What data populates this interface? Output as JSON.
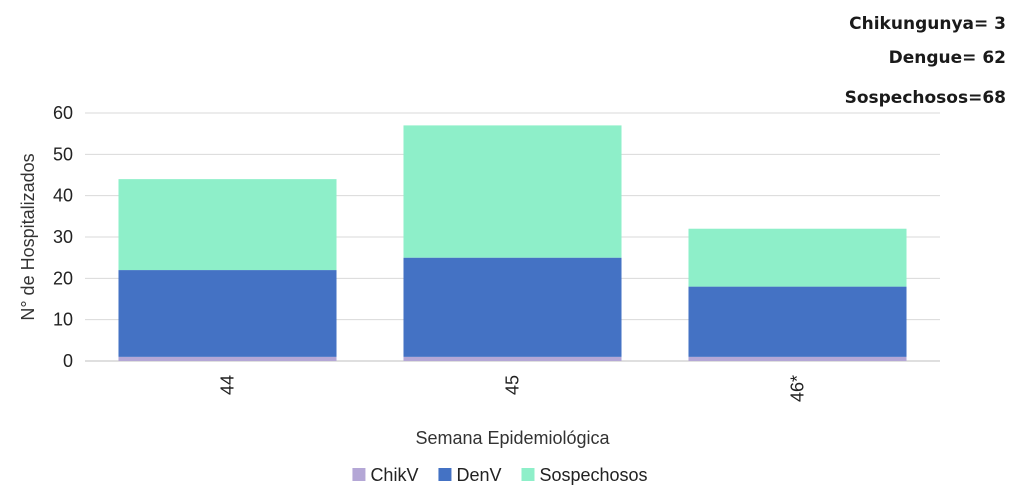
{
  "annotations": [
    "Chikungunya= 3",
    "Dengue= 62",
    "Sospechosos=68"
  ],
  "chart_data": {
    "type": "bar",
    "stacked": true,
    "title": "",
    "xlabel": "Semana Epidemiológica",
    "ylabel": "N° de Hospitalizados",
    "categories": [
      "44",
      "45",
      "46*"
    ],
    "ylim": [
      0,
      60
    ],
    "yticks": [
      0,
      10,
      20,
      30,
      40,
      50,
      60
    ],
    "grid": true,
    "legend_position": "bottom",
    "series": [
      {
        "name": "ChikV",
        "color": "#b4a7d6",
        "values": [
          1,
          1,
          1
        ]
      },
      {
        "name": "DenV",
        "color": "#4472c4",
        "values": [
          21,
          24,
          17
        ]
      },
      {
        "name": "Sospechosos",
        "color": "#8eefc9",
        "values": [
          22,
          32,
          14
        ]
      }
    ]
  }
}
